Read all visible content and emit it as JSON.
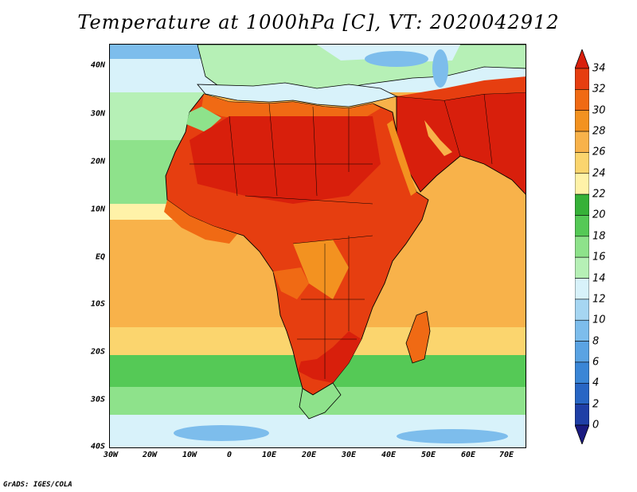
{
  "title": "Temperature at 1000hPa [C], VT: 2020042912",
  "credit": "GrADS: IGES/COLA",
  "lat_labels": [
    "40N",
    "30N",
    "20N",
    "10N",
    "EQ",
    "10S",
    "20S",
    "30S",
    "40S"
  ],
  "lon_labels": [
    "30W",
    "20W",
    "10W",
    "0",
    "10E",
    "20E",
    "30E",
    "40E",
    "50E",
    "60E",
    "70E"
  ],
  "colorbar": {
    "levels": [
      "0",
      "2",
      "4",
      "6",
      "8",
      "10",
      "12",
      "14",
      "16",
      "18",
      "20",
      "22",
      "24",
      "26",
      "28",
      "30",
      "32",
      "34"
    ],
    "colors": [
      "#1a1a80",
      "#1f3fa6",
      "#2866c4",
      "#3a86d6",
      "#5aa3e3",
      "#7dbdec",
      "#a6d6f2",
      "#d8f2fa",
      "#b6f0b6",
      "#8ee28b",
      "#55c956",
      "#36b138",
      "#fff2a8",
      "#fbd56e",
      "#f8b24a",
      "#f39220",
      "#f06a14",
      "#e63e10",
      "#d81f0c"
    ]
  },
  "palette": {
    "ocean_cold": "#7dbdec",
    "ocean_cool": "#d8f2fa",
    "ocean_mild": "#b6f0b6",
    "ocean_green": "#55c956",
    "ocean_yellow": "#fff2a8",
    "ocean_orange": "#f8b24a",
    "land_hot": "#e63e10",
    "land_very_hot": "#d81f0c",
    "land_warm": "#f06a14",
    "land_green": "#8ee28b",
    "coast_line": "#000000"
  }
}
